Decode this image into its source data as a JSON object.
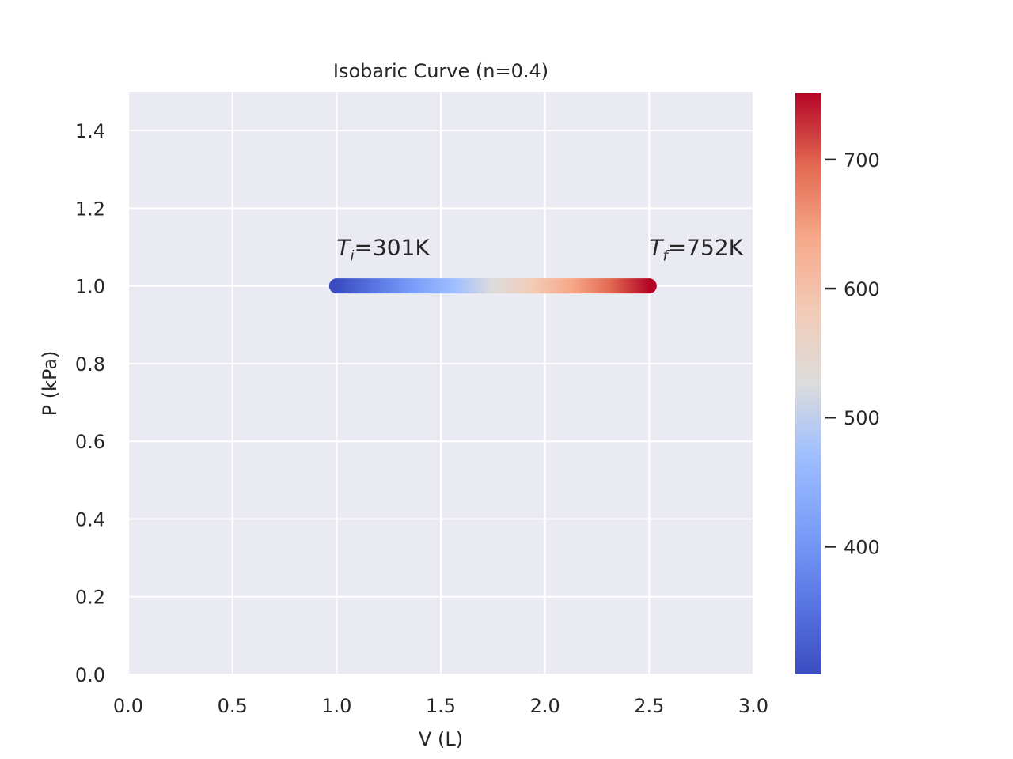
{
  "chart_data": {
    "type": "line",
    "title": "Isobaric Curve (n=0.4)",
    "xlabel": "V (L)",
    "ylabel": "P (kPa)",
    "xlim": [
      0.0,
      3.0
    ],
    "ylim": [
      0.0,
      1.5
    ],
    "xticks": [
      0.0,
      0.5,
      1.0,
      1.5,
      2.0,
      2.5,
      3.0
    ],
    "xtick_labels": [
      "0.0",
      "0.5",
      "1.0",
      "1.5",
      "2.0",
      "2.5",
      "3.0"
    ],
    "yticks": [
      0.0,
      0.2,
      0.4,
      0.6,
      0.8,
      1.0,
      1.2,
      1.4
    ],
    "ytick_labels": [
      "0.0",
      "0.2",
      "0.4",
      "0.6",
      "0.8",
      "1.0",
      "1.2",
      "1.4"
    ],
    "grid": true,
    "series": [
      {
        "x": [
          1.0,
          2.5
        ],
        "y": [
          1.0,
          1.0
        ],
        "color_values": [
          301,
          752
        ],
        "colormap": "coolwarm"
      }
    ],
    "annotations": [
      {
        "symbol": "T",
        "subscript": "i",
        "text": "=301K",
        "x": 1.0,
        "y": 1.1
      },
      {
        "symbol": "T",
        "subscript": "f",
        "text": "=752K",
        "x": 2.5,
        "y": 1.1
      }
    ],
    "colorbar": {
      "vmin": 301,
      "vmax": 752,
      "ticks": [
        400,
        500,
        600,
        700
      ],
      "tick_labels": [
        "400",
        "500",
        "600",
        "700"
      ],
      "colormap": "coolwarm"
    }
  },
  "colors": {
    "plot_background": "#eaeaf2",
    "grid": "#ffffff",
    "text": "#262626",
    "coolwarm_low": "#3b4cc0",
    "coolwarm_mid": "#dddcdc",
    "coolwarm_high": "#b40426"
  }
}
